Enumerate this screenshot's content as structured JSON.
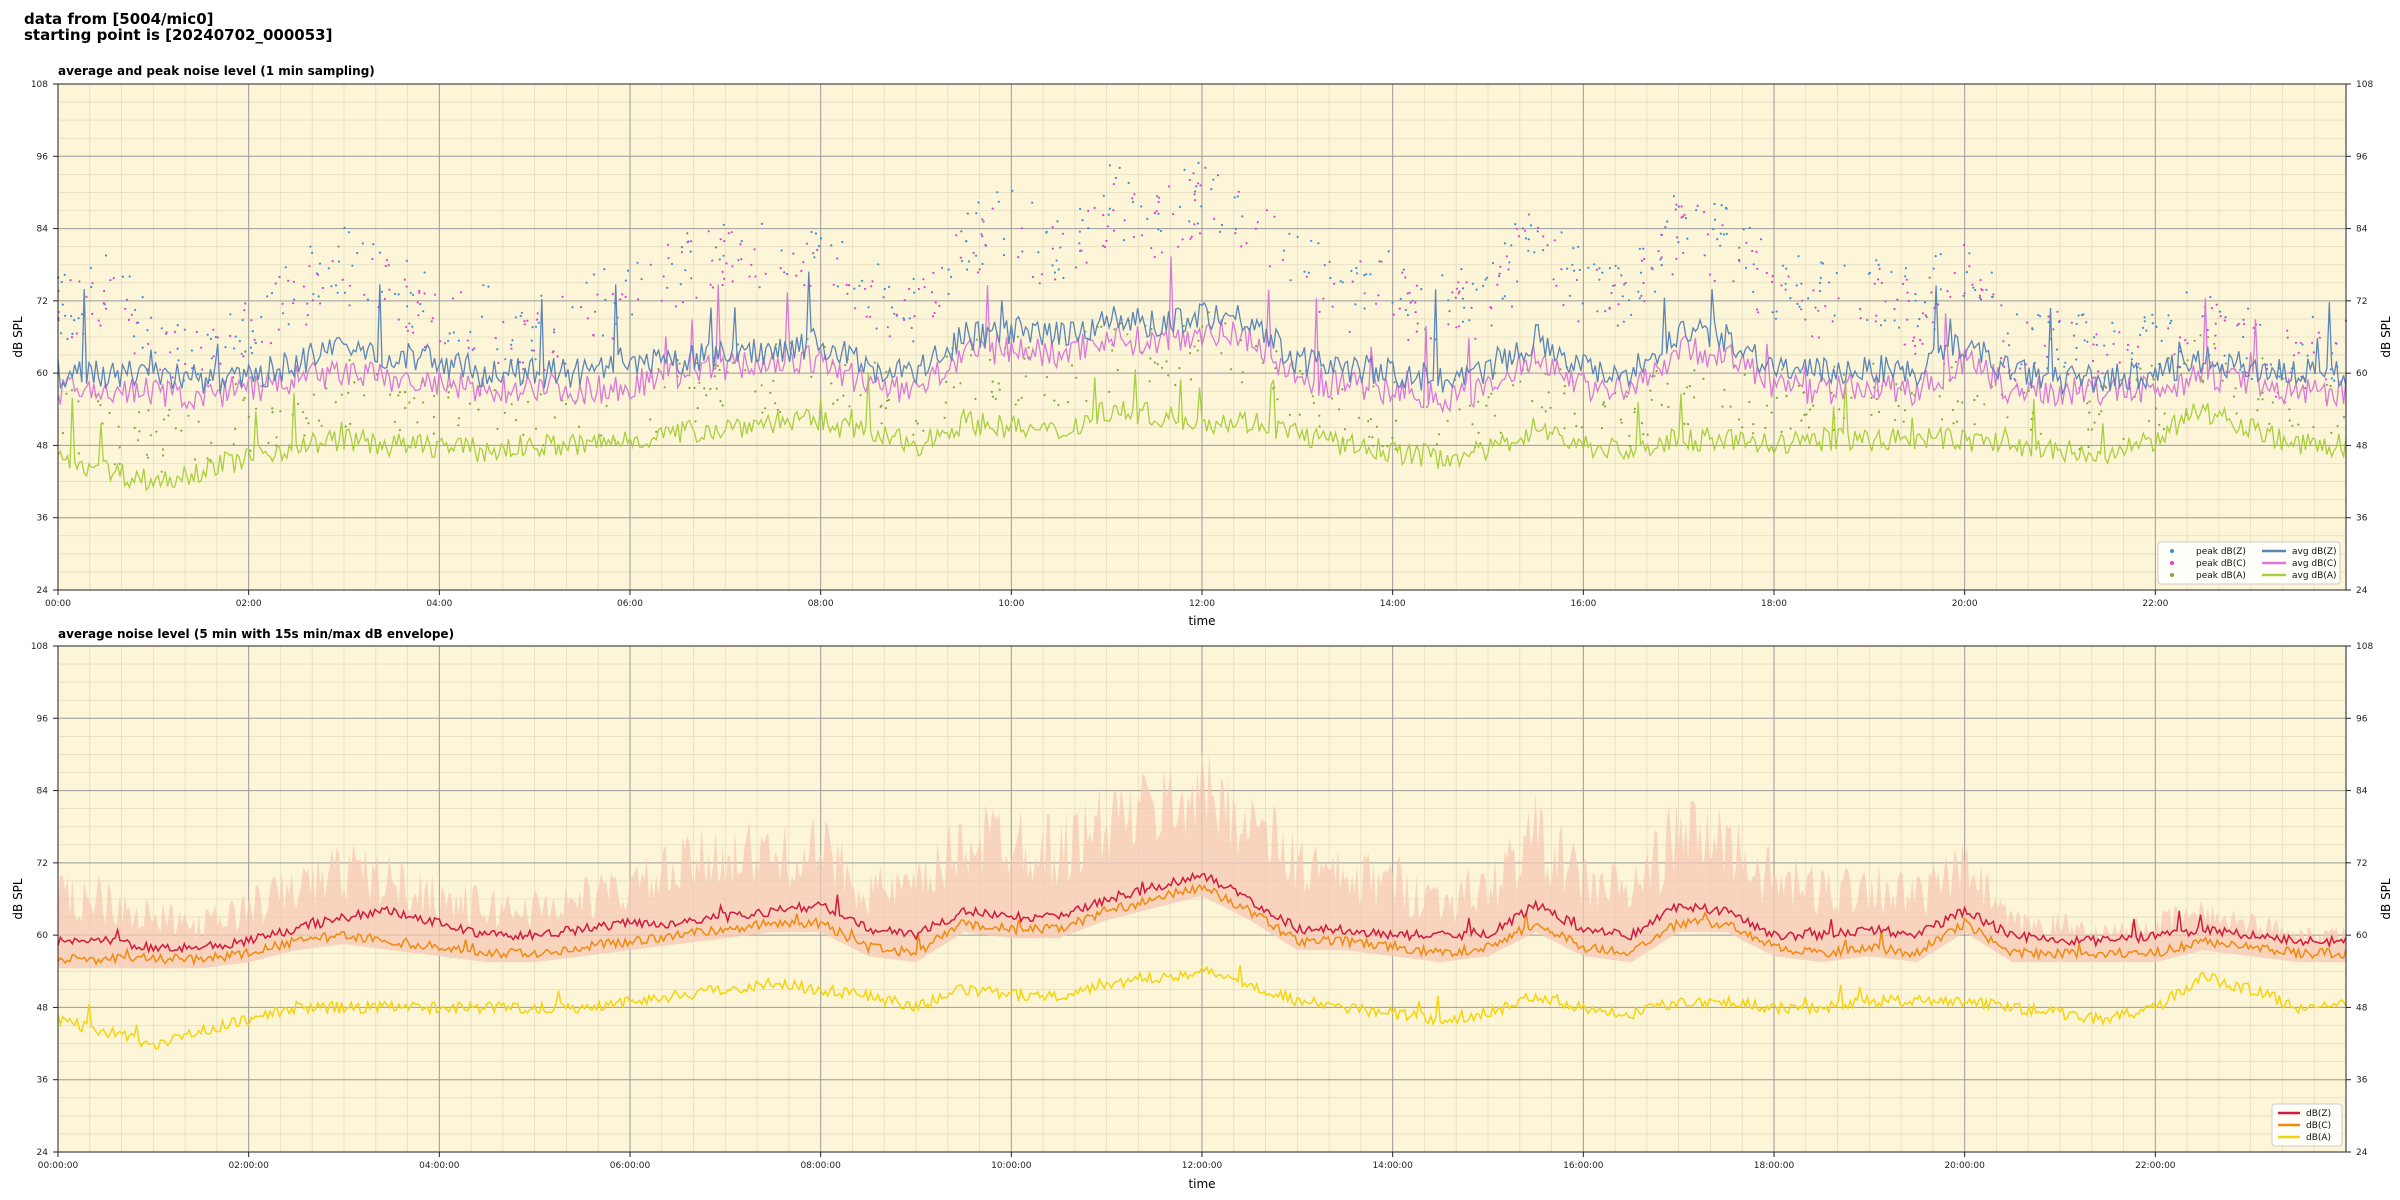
{
  "header": {
    "source_line": "data from [5004/mic0]",
    "start_line": "starting point is [20240702_000053]"
  },
  "colors": {
    "plot_bg": "#fdf5d8",
    "peak_z": "#3d8fd6",
    "peak_c": "#e040d0",
    "peak_a": "#7ea83a",
    "avg_z": "#5b86b8",
    "avg_c": "#d97ad8",
    "avg_a": "#a9cf3e",
    "db_z": "#d21a3c",
    "db_c": "#f18a0e",
    "db_a": "#f5d40e",
    "envelope": "#f6c8b6"
  },
  "chart_data": [
    {
      "type": "scatter+line",
      "title": "average and peak noise level (1 min sampling)",
      "xlabel": "time",
      "ylabel": "dB SPL",
      "xlim": [
        0,
        24
      ],
      "ylim": [
        24,
        108
      ],
      "y_ticks": [
        24,
        36,
        48,
        60,
        72,
        84,
        96,
        108
      ],
      "x_ticks": [
        "00:00",
        "02:00",
        "04:00",
        "06:00",
        "08:00",
        "10:00",
        "12:00",
        "14:00",
        "16:00",
        "18:00",
        "20:00",
        "22:00"
      ],
      "grid": true,
      "legend_position": "bottom-right",
      "legend": [
        "peak dB(Z)",
        "peak dB(C)",
        "peak dB(A)",
        "avg dB(Z)",
        "avg dB(C)",
        "avg dB(A)"
      ],
      "x_hours": [
        0,
        0.5,
        1,
        1.5,
        2,
        2.5,
        3,
        3.5,
        4,
        4.5,
        5,
        5.5,
        6,
        6.5,
        7,
        7.5,
        8,
        8.5,
        9,
        9.5,
        10,
        10.5,
        11,
        11.5,
        12,
        12.5,
        13,
        13.5,
        14,
        14.5,
        15,
        15.5,
        16,
        16.5,
        17,
        17.5,
        18,
        18.5,
        19,
        19.5,
        20,
        20.5,
        21,
        21.5,
        22,
        22.5,
        23,
        23.5,
        24
      ],
      "series": [
        {
          "name": "avg dB(Z)",
          "values": [
            60,
            60,
            60,
            59,
            59,
            62,
            64,
            63,
            62,
            60,
            60,
            60,
            61,
            62,
            63,
            64,
            65,
            61,
            60,
            66,
            67,
            66,
            69,
            68,
            70,
            69,
            62,
            61,
            60,
            59,
            60,
            66,
            61,
            60,
            67,
            66,
            61,
            60,
            61,
            60,
            65,
            60,
            59,
            59,
            60,
            62,
            61,
            60,
            60
          ]
        },
        {
          "name": "avg dB(C)",
          "values": [
            57,
            57,
            57,
            56,
            57,
            59,
            60,
            59,
            58,
            57,
            58,
            57,
            58,
            60,
            61,
            62,
            62,
            58,
            57,
            63,
            64,
            63,
            66,
            65,
            67,
            66,
            59,
            58,
            57,
            56,
            57,
            63,
            58,
            57,
            64,
            63,
            58,
            57,
            58,
            57,
            62,
            57,
            57,
            57,
            57,
            60,
            58,
            57,
            57
          ]
        },
        {
          "name": "avg dB(A)",
          "values": [
            46,
            44,
            42,
            44,
            46,
            48,
            49,
            48,
            48,
            47,
            48,
            48,
            49,
            50,
            51,
            52,
            52,
            50,
            48,
            52,
            51,
            50,
            54,
            53,
            52,
            52,
            50,
            48,
            47,
            46,
            47,
            51,
            48,
            47,
            49,
            49,
            48,
            49,
            49,
            49,
            49,
            48,
            47,
            46,
            49,
            54,
            51,
            48,
            48
          ]
        },
        {
          "name": "peak dB(Z)",
          "values": [
            72,
            76,
            68,
            64,
            70,
            76,
            80,
            76,
            72,
            70,
            68,
            72,
            74,
            80,
            84,
            80,
            82,
            74,
            72,
            84,
            86,
            82,
            90,
            88,
            92,
            88,
            80,
            76,
            76,
            72,
            74,
            86,
            76,
            74,
            86,
            84,
            76,
            74,
            76,
            72,
            80,
            66,
            68,
            64,
            66,
            70,
            66,
            64,
            66
          ]
        },
        {
          "name": "peak dB(C)",
          "values": [
            70,
            74,
            66,
            63,
            68,
            74,
            78,
            74,
            70,
            68,
            66,
            70,
            72,
            78,
            82,
            78,
            80,
            72,
            70,
            82,
            84,
            80,
            88,
            86,
            90,
            86,
            78,
            74,
            74,
            70,
            72,
            84,
            74,
            72,
            84,
            82,
            74,
            72,
            74,
            70,
            78,
            64,
            66,
            62,
            64,
            68,
            64,
            62,
            64
          ]
        },
        {
          "name": "peak dB(A)",
          "values": [
            54,
            52,
            50,
            52,
            54,
            56,
            58,
            56,
            55,
            54,
            55,
            55,
            56,
            58,
            60,
            60,
            62,
            58,
            56,
            62,
            62,
            60,
            64,
            64,
            66,
            64,
            58,
            56,
            54,
            54,
            55,
            60,
            56,
            55,
            58,
            58,
            56,
            57,
            57,
            57,
            58,
            56,
            55,
            54,
            57,
            62,
            59,
            56,
            56
          ]
        }
      ]
    },
    {
      "type": "line+area",
      "title": "average noise level (5 min with 15s min/max dB envelope)",
      "xlabel": "time",
      "ylabel": "dB SPL",
      "xlim": [
        0,
        24
      ],
      "ylim": [
        24,
        108
      ],
      "y_ticks": [
        24,
        36,
        48,
        60,
        72,
        84,
        96,
        108
      ],
      "x_ticks": [
        "00:00:00",
        "02:00:00",
        "04:00:00",
        "06:00:00",
        "08:00:00",
        "10:00:00",
        "12:00:00",
        "14:00:00",
        "16:00:00",
        "18:00:00",
        "20:00:00",
        "22:00:00"
      ],
      "grid": true,
      "legend_position": "bottom-right",
      "legend": [
        "dB(Z)",
        "dB(C)",
        "dB(A)"
      ],
      "x_hours": [
        0,
        0.5,
        1,
        1.5,
        2,
        2.5,
        3,
        3.5,
        4,
        4.5,
        5,
        5.5,
        6,
        6.5,
        7,
        7.5,
        8,
        8.5,
        9,
        9.5,
        10,
        10.5,
        11,
        11.5,
        12,
        12.5,
        13,
        13.5,
        14,
        14.5,
        15,
        15.5,
        16,
        16.5,
        17,
        17.5,
        18,
        18.5,
        19,
        19.5,
        20,
        20.5,
        21,
        21.5,
        22,
        22.5,
        23,
        23.5,
        24
      ],
      "series": [
        {
          "name": "dB(Z)",
          "values": [
            59,
            59,
            58,
            58,
            59,
            61,
            63,
            64,
            62,
            60,
            60,
            61,
            62,
            62,
            63,
            64,
            65,
            61,
            60,
            64,
            63,
            63,
            66,
            68,
            70,
            66,
            61,
            61,
            60,
            60,
            60,
            65,
            61,
            60,
            65,
            64,
            60,
            60,
            61,
            60,
            64,
            60,
            59,
            59,
            60,
            61,
            60,
            59,
            59
          ]
        },
        {
          "name": "dB(C)",
          "values": [
            56,
            56,
            56,
            56,
            57,
            59,
            60,
            59,
            58,
            57,
            57,
            58,
            59,
            60,
            61,
            62,
            62,
            58,
            57,
            62,
            61,
            61,
            64,
            66,
            68,
            64,
            59,
            59,
            58,
            57,
            58,
            62,
            58,
            57,
            62,
            62,
            58,
            57,
            58,
            57,
            62,
            57,
            57,
            57,
            57,
            59,
            58,
            57,
            57
          ]
        },
        {
          "name": "dB(A)",
          "values": [
            46,
            44,
            42,
            44,
            46,
            48,
            48,
            48,
            48,
            48,
            48,
            48,
            49,
            50,
            51,
            52,
            51,
            50,
            48,
            51,
            50,
            50,
            52,
            53,
            54,
            52,
            49,
            48,
            47,
            46,
            47,
            50,
            48,
            47,
            49,
            49,
            48,
            48,
            49,
            49,
            49,
            48,
            47,
            46,
            48,
            53,
            51,
            48,
            48
          ]
        },
        {
          "name": "envelope max",
          "values": [
            70,
            72,
            66,
            64,
            68,
            72,
            76,
            74,
            70,
            68,
            68,
            70,
            72,
            76,
            80,
            78,
            80,
            72,
            72,
            82,
            84,
            80,
            86,
            88,
            92,
            86,
            78,
            74,
            74,
            70,
            72,
            84,
            74,
            72,
            84,
            82,
            74,
            72,
            74,
            70,
            76,
            64,
            64,
            62,
            64,
            66,
            64,
            62,
            62
          ]
        }
      ]
    }
  ]
}
